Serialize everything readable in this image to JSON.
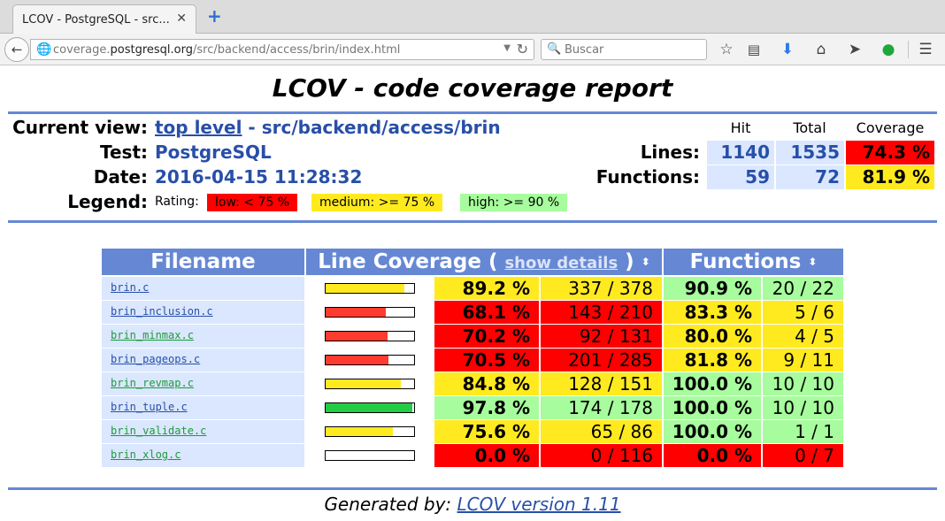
{
  "browser": {
    "tab_title": "LCOV - PostgreSQL - src...",
    "url_prefix": "coverage.",
    "url_host": "postgresql.org",
    "url_path": "/src/backend/access/brin/index.html",
    "search_placeholder": "Buscar"
  },
  "report": {
    "title": "LCOV - code coverage report",
    "current_view_label": "Current view:",
    "current_view_link": "top level",
    "current_view_path": " - src/backend/access/brin",
    "test_label": "Test:",
    "test_value": "PostgreSQL",
    "date_label": "Date:",
    "date_value": "2016-04-15 11:28:32",
    "legend_label": "Legend:",
    "rating_label": "Rating:",
    "legend": [
      {
        "text": "low: < 75 %",
        "color": "#ff0000"
      },
      {
        "text": "medium: >= 75 %",
        "color": "#ffea20"
      },
      {
        "text": "high: >= 90 %",
        "color": "#a7fc9d"
      }
    ]
  },
  "summary": {
    "headers": {
      "hit": "Hit",
      "total": "Total",
      "coverage": "Coverage"
    },
    "lines": {
      "label": "Lines:",
      "hit": "1140",
      "total": "1535",
      "coverage": "74.3 %",
      "color": "#ff0000"
    },
    "functions": {
      "label": "Functions:",
      "hit": "59",
      "total": "72",
      "coverage": "81.9 %",
      "color": "#ffea20"
    }
  },
  "files_table": {
    "head_filename": "Filename",
    "head_line_coverage_a": "Line Coverage ( ",
    "head_show_details": "show details",
    "head_line_coverage_b": " )",
    "head_functions": "Functions",
    "sort_glyph": "⬍",
    "rows": [
      {
        "name": "brin.c",
        "link_color": "#284fa8",
        "bar_pct": 89.2,
        "bar_color": "#ffea20",
        "line_pct": "89.2 %",
        "line_frac": "337 / 378",
        "line_color": "#ffea20",
        "fn_pct": "90.9 %",
        "fn_frac": "20 / 22",
        "fn_color": "#a7fc9d"
      },
      {
        "name": "brin_inclusion.c",
        "link_color": "#284fa8",
        "bar_pct": 68.1,
        "bar_color": "#ff3b30",
        "line_pct": "68.1 %",
        "line_frac": "143 / 210",
        "line_color": "#ff0000",
        "fn_pct": "83.3 %",
        "fn_frac": "5 / 6",
        "fn_color": "#ffea20"
      },
      {
        "name": "brin_minmax.c",
        "link_color": "#1f9a3a",
        "bar_pct": 70.2,
        "bar_color": "#ff3b30",
        "line_pct": "70.2 %",
        "line_frac": "92 / 131",
        "line_color": "#ff0000",
        "fn_pct": "80.0 %",
        "fn_frac": "4 / 5",
        "fn_color": "#ffea20"
      },
      {
        "name": "brin_pageops.c",
        "link_color": "#284fa8",
        "bar_pct": 70.5,
        "bar_color": "#ff3b30",
        "line_pct": "70.5 %",
        "line_frac": "201 / 285",
        "line_color": "#ff0000",
        "fn_pct": "81.8 %",
        "fn_frac": "9 / 11",
        "fn_color": "#ffea20"
      },
      {
        "name": "brin_revmap.c",
        "link_color": "#1f9a3a",
        "bar_pct": 84.8,
        "bar_color": "#ffea20",
        "line_pct": "84.8 %",
        "line_frac": "128 / 151",
        "line_color": "#ffea20",
        "fn_pct": "100.0 %",
        "fn_frac": "10 / 10",
        "fn_color": "#a7fc9d"
      },
      {
        "name": "brin_tuple.c",
        "link_color": "#284fa8",
        "bar_pct": 97.8,
        "bar_color": "#22cc44",
        "line_pct": "97.8 %",
        "line_frac": "174 / 178",
        "line_color": "#a7fc9d",
        "fn_pct": "100.0 %",
        "fn_frac": "10 / 10",
        "fn_color": "#a7fc9d"
      },
      {
        "name": "brin_validate.c",
        "link_color": "#1f9a3a",
        "bar_pct": 75.6,
        "bar_color": "#ffea20",
        "line_pct": "75.6 %",
        "line_frac": "65 / 86",
        "line_color": "#ffea20",
        "fn_pct": "100.0 %",
        "fn_frac": "1 / 1",
        "fn_color": "#a7fc9d"
      },
      {
        "name": "brin_xlog.c",
        "link_color": "#1f9a3a",
        "bar_pct": 0.0,
        "bar_color": "#ff3b30",
        "line_pct": "0.0 %",
        "line_frac": "0 / 116",
        "line_color": "#ff0000",
        "fn_pct": "0.0 %",
        "fn_frac": "0 / 7",
        "fn_color": "#ff0000"
      }
    ]
  },
  "footer": {
    "generated_by": "Generated by: ",
    "link": "LCOV version 1.11"
  },
  "colors": {
    "accent": "#6688d4",
    "link": "#284fa8",
    "cell_bg": "#dae7fe"
  }
}
